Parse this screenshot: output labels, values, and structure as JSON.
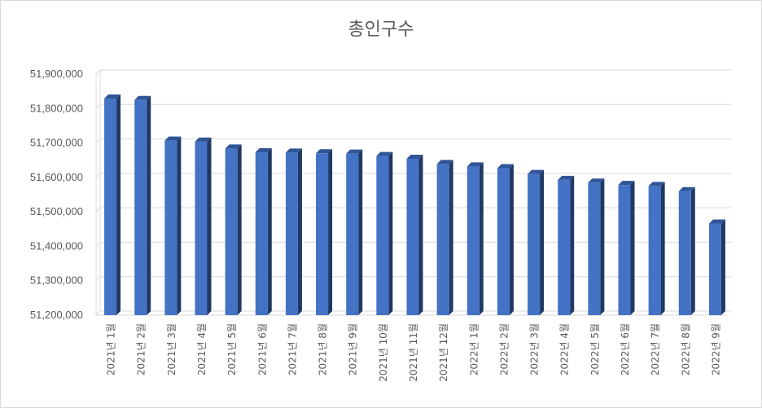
{
  "chart_data": {
    "type": "bar",
    "title": "총인구수",
    "xlabel": "",
    "ylabel": "",
    "ylim": [
      51200000,
      51900000
    ],
    "yticks": [
      51200000,
      51300000,
      51400000,
      51500000,
      51600000,
      51700000,
      51800000,
      51900000
    ],
    "ytick_labels": [
      "51,200,000",
      "51,300,000",
      "51,400,000",
      "51,500,000",
      "51,600,000",
      "51,700,000",
      "51,800,000",
      "51,900,000"
    ],
    "grid": true,
    "legend": "none",
    "bar_color": "#4472c4",
    "bar_top_color": "#2f5597",
    "bar_side_color": "#203864",
    "categories": [
      "2021년 1월",
      "2021년 2월",
      "2021년 3월",
      "2021년 4월",
      "2021년 5월",
      "2021년 6월",
      "2021년 7월",
      "2021년 8월",
      "2021년 9월",
      "2021년 10월",
      "2021년 11월",
      "2021년 12월",
      "2022년 1월",
      "2022년 2월",
      "2022년 3월",
      "2022년 4월",
      "2022년 5월",
      "2022년 6월",
      "2022년 7월",
      "2022년 8월",
      "2022년 9월"
    ],
    "values": [
      51829000,
      51825000,
      51707000,
      51704000,
      51684000,
      51673000,
      51672000,
      51670000,
      51669000,
      51662000,
      51654000,
      51639000,
      51632000,
      51627000,
      51610000,
      51593000,
      51585000,
      51578000,
      51575000,
      51560000,
      51466000
    ]
  }
}
